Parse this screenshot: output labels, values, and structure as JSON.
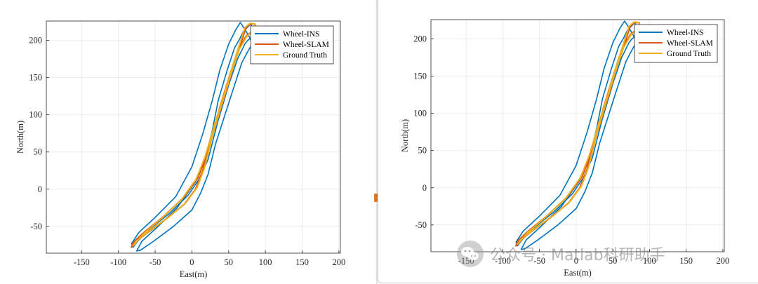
{
  "chart_data": [
    {
      "type": "line",
      "panel": "left",
      "title": "",
      "xlabel": "East(m)",
      "ylabel": "North(m)",
      "xlim": [
        -198,
        202
      ],
      "ylim": [
        -86,
        226
      ],
      "xticks": [
        -150,
        -100,
        -50,
        0,
        50,
        100,
        150,
        200
      ],
      "yticks": [
        -50,
        0,
        50,
        100,
        150,
        200
      ],
      "grid": true,
      "legend_position": "top-right",
      "series": [
        {
          "name": "Wheel-INS",
          "color": "#0072BD",
          "x": [
            -75,
            -70,
            -52,
            -25,
            0,
            12,
            22,
            32,
            45,
            58,
            68,
            76,
            80,
            82,
            78,
            72,
            66,
            60,
            50,
            38,
            28,
            15,
            0,
            -22,
            -50,
            -72,
            -82,
            -80,
            -72,
            -55,
            -30,
            -5,
            10,
            22,
            35,
            50,
            62,
            72,
            76,
            82,
            85,
            80,
            70,
            64,
            58,
            48,
            36,
            28,
            18,
            5,
            -20,
            -48,
            -68,
            -75
          ],
          "y": [
            -83,
            -82,
            -70,
            -50,
            -28,
            -5,
            20,
            60,
            100,
            140,
            170,
            185,
            192,
            196,
            205,
            215,
            224,
            215,
            195,
            160,
            120,
            75,
            30,
            -10,
            -38,
            -58,
            -73,
            -78,
            -68,
            -52,
            -32,
            -8,
            14,
            40,
            90,
            140,
            175,
            195,
            200,
            205,
            212,
            222,
            212,
            200,
            190,
            160,
            120,
            80,
            40,
            10,
            -25,
            -52,
            -70,
            -83
          ]
        },
        {
          "name": "Wheel-SLAM",
          "color": "#D95319",
          "x": [
            -82,
            -78,
            -60,
            -35,
            -10,
            5,
            15,
            25,
            38,
            52,
            64,
            74,
            82,
            86,
            86,
            80,
            74,
            68,
            58,
            46,
            32,
            20,
            8,
            -12,
            -40,
            -65,
            -80,
            -82
          ],
          "y": [
            -78,
            -72,
            -58,
            -40,
            -20,
            0,
            25,
            65,
            110,
            155,
            188,
            206,
            212,
            218,
            222,
            222,
            218,
            200,
            170,
            130,
            85,
            45,
            15,
            -12,
            -38,
            -58,
            -72,
            -78
          ]
        },
        {
          "name": "Ground Truth",
          "color": "#EDB120",
          "x": [
            -80,
            -76,
            -58,
            -32,
            -8,
            7,
            17,
            27,
            40,
            54,
            65,
            75,
            83,
            87,
            86,
            79,
            72,
            66,
            56,
            44,
            30,
            18,
            6,
            -14,
            -42,
            -66,
            -78,
            -80
          ],
          "y": [
            -76,
            -70,
            -56,
            -38,
            -18,
            2,
            28,
            68,
            112,
            157,
            189,
            206,
            212,
            217,
            222,
            223,
            217,
            198,
            168,
            128,
            84,
            44,
            14,
            -14,
            -40,
            -60,
            -74,
            -76
          ]
        }
      ]
    },
    {
      "type": "line",
      "panel": "right",
      "title": "",
      "xlabel": "East(m)",
      "ylabel": "North(m)",
      "xlim": [
        -198,
        202
      ],
      "ylim": [
        -86,
        226
      ],
      "xticks": [
        -150,
        -100,
        -50,
        0,
        50,
        100,
        150,
        200
      ],
      "yticks": [
        -50,
        0,
        50,
        100,
        150,
        200
      ],
      "grid": true,
      "legend_position": "top-right",
      "series": [
        {
          "name": "Wheel-INS",
          "color": "#0072BD",
          "x": [
            -75,
            -70,
            -52,
            -25,
            0,
            12,
            22,
            32,
            45,
            58,
            68,
            76,
            80,
            82,
            78,
            72,
            66,
            60,
            50,
            38,
            28,
            15,
            0,
            -22,
            -50,
            -72,
            -82,
            -80,
            -72,
            -55,
            -30,
            -5,
            10,
            22,
            35,
            50,
            62,
            72,
            76,
            82,
            85,
            80,
            70,
            64,
            58,
            48,
            36,
            28,
            18,
            5,
            -20,
            -48,
            -68,
            -75
          ],
          "y": [
            -83,
            -82,
            -70,
            -50,
            -28,
            -5,
            20,
            60,
            100,
            140,
            170,
            185,
            192,
            196,
            205,
            215,
            224,
            215,
            195,
            160,
            120,
            75,
            30,
            -10,
            -38,
            -58,
            -73,
            -78,
            -68,
            -52,
            -32,
            -8,
            14,
            40,
            90,
            140,
            175,
            195,
            200,
            205,
            212,
            222,
            212,
            200,
            190,
            160,
            120,
            80,
            40,
            10,
            -25,
            -52,
            -70,
            -83
          ]
        },
        {
          "name": "Wheel-SLAM",
          "color": "#D95319",
          "x": [
            -82,
            -78,
            -60,
            -35,
            -10,
            5,
            15,
            25,
            38,
            52,
            64,
            74,
            82,
            86,
            86,
            80,
            74,
            68,
            58,
            46,
            32,
            20,
            8,
            -12,
            -40,
            -65,
            -80,
            -82
          ],
          "y": [
            -78,
            -72,
            -58,
            -40,
            -20,
            0,
            25,
            65,
            110,
            155,
            188,
            206,
            212,
            218,
            222,
            222,
            218,
            200,
            170,
            130,
            85,
            45,
            15,
            -12,
            -38,
            -58,
            -72,
            -78
          ]
        },
        {
          "name": "Ground Truth",
          "color": "#EDB120",
          "x": [
            -80,
            -76,
            -58,
            -32,
            -8,
            7,
            17,
            27,
            40,
            54,
            65,
            75,
            83,
            87,
            86,
            79,
            72,
            66,
            56,
            44,
            30,
            18,
            6,
            -14,
            -42,
            -66,
            -78,
            -80
          ],
          "y": [
            -76,
            -70,
            -56,
            -38,
            -18,
            2,
            28,
            68,
            112,
            157,
            189,
            206,
            212,
            217,
            222,
            223,
            217,
            198,
            168,
            128,
            84,
            44,
            14,
            -14,
            -40,
            -60,
            -74,
            -76
          ]
        }
      ]
    }
  ],
  "watermark": {
    "icon": "wechat-icon",
    "text": "公众号 · Matlab科研助手"
  },
  "colors": {
    "panel_border": "#cfcfcf",
    "axis": "#262626",
    "grid": "#ebebeb"
  }
}
